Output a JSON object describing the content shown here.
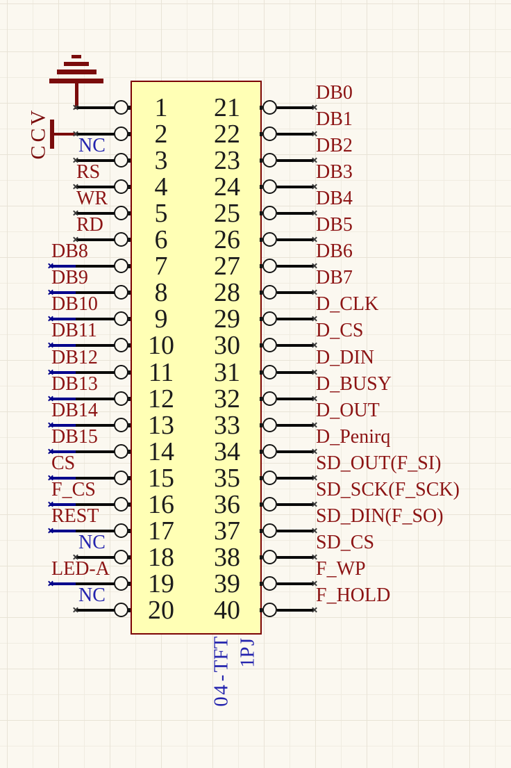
{
  "colors": {
    "background": "#FBF8F0",
    "grid_line": "#E8E3D6",
    "body_fill": "#FFFFB5",
    "body_border": "#7C0505",
    "net_label_red": "#8C1414",
    "nc_label_blue": "#2424AE",
    "wire_black": "#0A0A0A",
    "wire_navy": "#00008B",
    "power_symbol_red": "#7A0C0C",
    "pin_number_black": "#1C1C1C"
  },
  "component": {
    "designator": "JP1",
    "part_type": "TFT-40",
    "power": {
      "vcc": "VCC"
    },
    "left_pins": [
      {
        "number": "1",
        "label": "",
        "style": "gnd"
      },
      {
        "number": "2",
        "label": "",
        "style": "vcc"
      },
      {
        "number": "3",
        "label": "NC",
        "style": "nc"
      },
      {
        "number": "4",
        "label": "RS",
        "style": "plain"
      },
      {
        "number": "5",
        "label": "WR",
        "style": "plain"
      },
      {
        "number": "6",
        "label": "RD",
        "style": "plain"
      },
      {
        "number": "7",
        "label": "DB8",
        "style": "net"
      },
      {
        "number": "8",
        "label": "DB9",
        "style": "net"
      },
      {
        "number": "9",
        "label": "DB10",
        "style": "net"
      },
      {
        "number": "10",
        "label": "DB11",
        "style": "net"
      },
      {
        "number": "11",
        "label": "DB12",
        "style": "net"
      },
      {
        "number": "12",
        "label": "DB13",
        "style": "net"
      },
      {
        "number": "13",
        "label": "DB14",
        "style": "net"
      },
      {
        "number": "14",
        "label": "DB15",
        "style": "net"
      },
      {
        "number": "15",
        "label": "CS",
        "style": "net"
      },
      {
        "number": "16",
        "label": "F_CS",
        "style": "net"
      },
      {
        "number": "17",
        "label": "REST",
        "style": "net"
      },
      {
        "number": "18",
        "label": "NC",
        "style": "nc"
      },
      {
        "number": "19",
        "label": "LED-A",
        "style": "net"
      },
      {
        "number": "20",
        "label": "NC",
        "style": "nc"
      }
    ],
    "right_pins": [
      {
        "number": "21",
        "label": "DB0"
      },
      {
        "number": "22",
        "label": "DB1"
      },
      {
        "number": "23",
        "label": "DB2"
      },
      {
        "number": "24",
        "label": "DB3"
      },
      {
        "number": "25",
        "label": "DB4"
      },
      {
        "number": "26",
        "label": "DB5"
      },
      {
        "number": "27",
        "label": "DB6"
      },
      {
        "number": "28",
        "label": "DB7"
      },
      {
        "number": "29",
        "label": "D_CLK"
      },
      {
        "number": "30",
        "label": "D_CS"
      },
      {
        "number": "31",
        "label": "D_DIN"
      },
      {
        "number": "32",
        "label": "D_BUSY"
      },
      {
        "number": "33",
        "label": "D_OUT"
      },
      {
        "number": "34",
        "label": "D_Penirq"
      },
      {
        "number": "35",
        "label": "SD_OUT(F_SI)"
      },
      {
        "number": "36",
        "label": "SD_SCK(F_SCK)"
      },
      {
        "number": "37",
        "label": "SD_DIN(F_SO)"
      },
      {
        "number": "38",
        "label": "SD_CS"
      },
      {
        "number": "39",
        "label": "F_WP"
      },
      {
        "number": "40",
        "label": "F_HOLD"
      }
    ]
  }
}
